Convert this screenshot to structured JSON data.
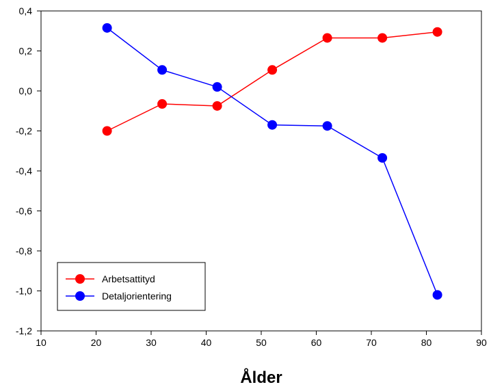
{
  "chart_data": {
    "type": "line",
    "title": "",
    "xlabel": "Ålder",
    "ylabel": "",
    "xlim": [
      10,
      90
    ],
    "ylim": [
      -1.2,
      0.4
    ],
    "x_ticks": [
      10,
      20,
      30,
      40,
      50,
      60,
      70,
      80,
      90
    ],
    "x_tick_labels": [
      "10",
      "20",
      "30",
      "40",
      "50",
      "60",
      "70",
      "80",
      "90"
    ],
    "y_ticks": [
      0.4,
      0.2,
      0.0,
      -0.2,
      -0.4,
      -0.6,
      -0.8,
      -1.0,
      -1.2
    ],
    "y_tick_labels": [
      "0,4",
      "0,2",
      "0,0",
      "-0,2",
      "-0,4",
      "-0,6",
      "-0,8",
      "-1,0",
      "-1,2"
    ],
    "grid": false,
    "legend_position": "bottom-left",
    "x": [
      22,
      32,
      42,
      52,
      62,
      72,
      82
    ],
    "series": [
      {
        "name": "Arbetsattityd",
        "color": "#ff0000",
        "values": [
          -0.2,
          -0.065,
          -0.075,
          0.105,
          0.265,
          0.265,
          0.295
        ]
      },
      {
        "name": "Detaljorientering",
        "color": "#0000ff",
        "values": [
          0.315,
          0.105,
          0.02,
          -0.17,
          -0.175,
          -0.335,
          -1.02
        ]
      }
    ]
  }
}
